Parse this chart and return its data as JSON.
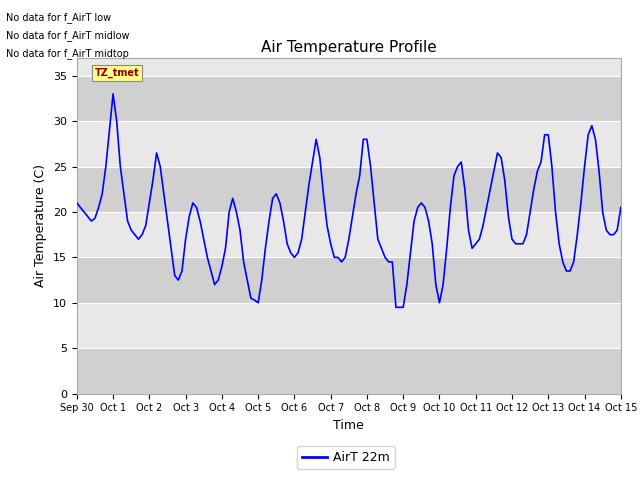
{
  "title": "Air Temperature Profile",
  "xlabel": "Time",
  "ylabel": "Air Temperature (C)",
  "ylim": [
    0,
    37
  ],
  "yticks": [
    0,
    5,
    10,
    15,
    20,
    25,
    30,
    35
  ],
  "line_color": "blue",
  "line_width": 1.2,
  "legend_label": "AirT 22m",
  "annotations": [
    "No data for f_AirT low",
    "No data for f_AirT midlow",
    "No data for f_AirT midtop"
  ],
  "tz_label": "TZ_tmet",
  "time_data": [
    0.0,
    0.1,
    0.2,
    0.3,
    0.4,
    0.5,
    0.6,
    0.7,
    0.8,
    0.9,
    1.0,
    1.1,
    1.2,
    1.3,
    1.4,
    1.5,
    1.6,
    1.7,
    1.8,
    1.9,
    2.0,
    2.1,
    2.2,
    2.3,
    2.4,
    2.5,
    2.6,
    2.7,
    2.8,
    2.9,
    3.0,
    3.1,
    3.2,
    3.3,
    3.4,
    3.5,
    3.6,
    3.7,
    3.8,
    3.9,
    4.0,
    4.1,
    4.2,
    4.3,
    4.4,
    4.5,
    4.6,
    4.7,
    4.8,
    4.9,
    5.0,
    5.1,
    5.2,
    5.3,
    5.4,
    5.5,
    5.6,
    5.7,
    5.8,
    5.9,
    6.0,
    6.1,
    6.2,
    6.3,
    6.4,
    6.5,
    6.6,
    6.7,
    6.8,
    6.9,
    7.0,
    7.1,
    7.2,
    7.3,
    7.4,
    7.5,
    7.6,
    7.7,
    7.8,
    7.9,
    8.0,
    8.1,
    8.2,
    8.3,
    8.4,
    8.5,
    8.6,
    8.7,
    8.8,
    8.9,
    9.0,
    9.1,
    9.2,
    9.3,
    9.4,
    9.5,
    9.6,
    9.7,
    9.8,
    9.9,
    10.0,
    10.1,
    10.2,
    10.3,
    10.4,
    10.5,
    10.6,
    10.7,
    10.8,
    10.9,
    11.0,
    11.1,
    11.2,
    11.3,
    11.4,
    11.5,
    11.6,
    11.7,
    11.8,
    11.9,
    12.0,
    12.1,
    12.2,
    12.3,
    12.4,
    12.5,
    12.6,
    12.7,
    12.8,
    12.9,
    13.0,
    13.1,
    13.2,
    13.3,
    13.4,
    13.5,
    13.6,
    13.7,
    13.8,
    13.9,
    14.0,
    14.1,
    14.2,
    14.3,
    14.4,
    14.5,
    14.6,
    14.7,
    14.8,
    14.9,
    15.0
  ],
  "temp_data": [
    21.0,
    20.5,
    20.0,
    19.5,
    19.0,
    19.3,
    20.5,
    22.0,
    25.0,
    29.0,
    33.0,
    30.0,
    25.0,
    22.0,
    19.0,
    18.0,
    17.5,
    17.0,
    17.5,
    18.5,
    21.0,
    23.5,
    26.5,
    25.0,
    22.0,
    19.0,
    16.0,
    13.0,
    12.5,
    13.5,
    17.0,
    19.5,
    21.0,
    20.5,
    19.0,
    17.0,
    15.0,
    13.5,
    12.0,
    12.5,
    14.0,
    16.0,
    20.0,
    21.5,
    20.0,
    18.0,
    14.5,
    12.5,
    10.5,
    10.3,
    10.0,
    12.5,
    16.0,
    19.0,
    21.5,
    22.0,
    21.0,
    19.0,
    16.5,
    15.5,
    15.0,
    15.5,
    17.0,
    20.0,
    23.0,
    25.5,
    28.0,
    26.0,
    22.0,
    18.5,
    16.5,
    15.0,
    15.0,
    14.5,
    15.0,
    17.0,
    19.5,
    22.0,
    24.0,
    28.0,
    28.0,
    25.0,
    21.0,
    17.0,
    16.0,
    15.0,
    14.5,
    14.5,
    9.5,
    9.5,
    9.5,
    12.0,
    15.5,
    19.0,
    20.5,
    21.0,
    20.5,
    19.0,
    16.5,
    12.0,
    10.0,
    12.0,
    16.0,
    20.5,
    24.0,
    25.0,
    25.5,
    22.5,
    18.0,
    16.0,
    16.5,
    17.0,
    18.5,
    20.5,
    22.5,
    24.5,
    26.5,
    26.0,
    23.5,
    19.5,
    17.0,
    16.5,
    16.5,
    16.5,
    17.5,
    20.0,
    22.5,
    24.5,
    25.5,
    28.5,
    28.5,
    25.0,
    20.0,
    16.5,
    14.5,
    13.5,
    13.5,
    14.5,
    17.5,
    21.0,
    25.0,
    28.5,
    29.5,
    28.0,
    24.5,
    20.0,
    18.0,
    17.5,
    17.5,
    18.0,
    20.5
  ],
  "tick_dates": [
    "Sep 30",
    "Oct 1",
    "Oct 2",
    "Oct 3",
    "Oct 4",
    "Oct 5",
    "Oct 6",
    "Oct 7",
    "Oct 8",
    "Oct 9",
    "Oct 10",
    "Oct 11",
    "Oct 12",
    "Oct 13",
    "Oct 14",
    "Oct 15"
  ],
  "tick_positions": [
    0,
    1,
    2,
    3,
    4,
    5,
    6,
    7,
    8,
    9,
    10,
    11,
    12,
    13,
    14,
    15
  ]
}
